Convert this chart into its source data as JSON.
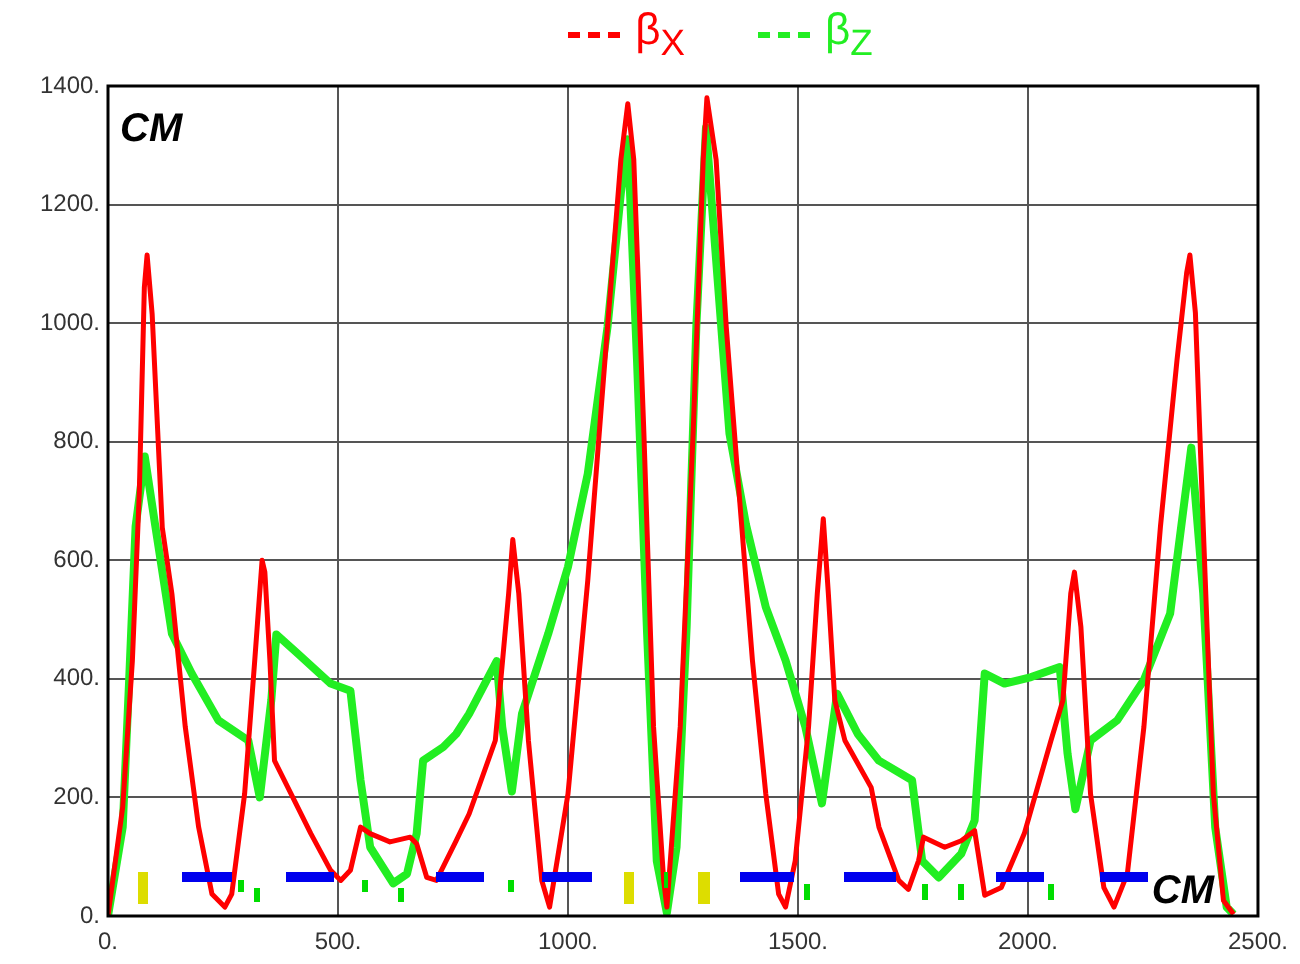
{
  "chart_data": {
    "type": "line",
    "xlim": [
      0,
      2500
    ],
    "ylim": [
      0,
      1400
    ],
    "xticks": [
      {
        "value": 0,
        "label": "0."
      },
      {
        "value": 500,
        "label": "500."
      },
      {
        "value": 1000,
        "label": "1000."
      },
      {
        "value": 1500,
        "label": "1500."
      },
      {
        "value": 2000,
        "label": "2000."
      },
      {
        "value": 2500,
        "label": "2500."
      }
    ],
    "yticks": [
      {
        "value": 0,
        "label": "0."
      },
      {
        "value": 200,
        "label": "200."
      },
      {
        "value": 400,
        "label": "400."
      },
      {
        "value": 600,
        "label": "600."
      },
      {
        "value": 800,
        "label": "800."
      },
      {
        "value": 1000,
        "label": "1000."
      },
      {
        "value": 1200,
        "label": "1200."
      },
      {
        "value": 1400,
        "label": "1400."
      }
    ],
    "grid": true,
    "legend": "top",
    "marker": "none",
    "line_style": "solid",
    "annotations": [
      "CM",
      "CM"
    ],
    "series": [
      {
        "name": "β$_{X}$",
        "color": "#ff0000",
        "x": [
          0,
          32,
          53,
          68,
          79,
          85,
          96,
          118,
          139,
          168,
          197,
          226,
          254,
          269,
          297,
          319,
          335,
          341,
          352,
          362,
          398,
          441,
          484,
          506,
          527,
          549,
          570,
          613,
          657,
          671,
          693,
          714,
          757,
          785,
          842,
          871,
          880,
          893,
          914,
          943,
          960,
          1000,
          1043,
          1086,
          1115,
          1130,
          1143,
          1165,
          1186,
          1208,
          1215,
          1244,
          1272,
          1294,
          1302,
          1322,
          1344,
          1372,
          1401,
          1430,
          1458,
          1473,
          1494,
          1523,
          1542,
          1555,
          1566,
          1580,
          1602,
          1659,
          1676,
          1719,
          1740,
          1762,
          1773,
          1819,
          1855,
          1884,
          1906,
          1942,
          1992,
          2050,
          2076,
          2093,
          2101,
          2115,
          2136,
          2165,
          2187,
          2216,
          2252,
          2288,
          2324,
          2345,
          2352,
          2364,
          2381,
          2403,
          2425,
          2447
        ],
        "values": [
          0,
          184,
          431,
          713,
          1060,
          1115,
          1015,
          655,
          543,
          319,
          150,
          37,
          15,
          37,
          206,
          431,
          600,
          580,
          431,
          262,
          206,
          139,
          77,
          60,
          77,
          150,
          139,
          125,
          133,
          122,
          65,
          60,
          127,
          172,
          296,
          544,
          635,
          544,
          296,
          60,
          15,
          206,
          566,
          994,
          1276,
          1370,
          1276,
          814,
          319,
          60,
          15,
          319,
          814,
          1276,
          1380,
          1276,
          994,
          713,
          431,
          206,
          37,
          15,
          93,
          319,
          544,
          670,
          544,
          364,
          296,
          217,
          150,
          60,
          45,
          93,
          133,
          116,
          127,
          144,
          35,
          48,
          139,
          296,
          364,
          544,
          580,
          488,
          206,
          48,
          15,
          71,
          319,
          657,
          938,
          1085,
          1115,
          1017,
          657,
          206,
          26,
          3
        ]
      },
      {
        "name": "β$_{Z}$",
        "color": "#22ee22",
        "x": [
          0,
          32,
          46,
          60,
          80,
          103,
          139,
          182,
          240,
          305,
          330,
          355,
          366,
          412,
          484,
          527,
          549,
          570,
          620,
          650,
          671,
          685,
          729,
          757,
          785,
          845,
          857,
          878,
          900,
          957,
          1000,
          1043,
          1086,
          1115,
          1130,
          1150,
          1172,
          1193,
          1215,
          1236,
          1258,
          1279,
          1300,
          1322,
          1351,
          1387,
          1430,
          1473,
          1516,
          1552,
          1585,
          1630,
          1676,
          1748,
          1770,
          1806,
          1855,
          1884,
          1906,
          1949,
          2007,
          2069,
          2086,
          2103,
          2136,
          2194,
          2252,
          2309,
          2355,
          2381,
          2407,
          2432,
          2447
        ],
        "values": [
          0,
          150,
          398,
          657,
          775,
          657,
          476,
          409,
          330,
          296,
          200,
          364,
          475,
          443,
          392,
          380,
          229,
          116,
          55,
          71,
          139,
          262,
          285,
          307,
          341,
          430,
          319,
          210,
          341,
          476,
          589,
          746,
          994,
          1220,
          1310,
          938,
          476,
          93,
          5,
          116,
          488,
          994,
          1330,
          1107,
          814,
          660,
          521,
          431,
          319,
          190,
          375,
          307,
          262,
          229,
          93,
          65,
          105,
          161,
          409,
          392,
          403,
          420,
          274,
          180,
          296,
          330,
          398,
          510,
          790,
          544,
          150,
          15,
          3
        ]
      }
    ]
  }
}
